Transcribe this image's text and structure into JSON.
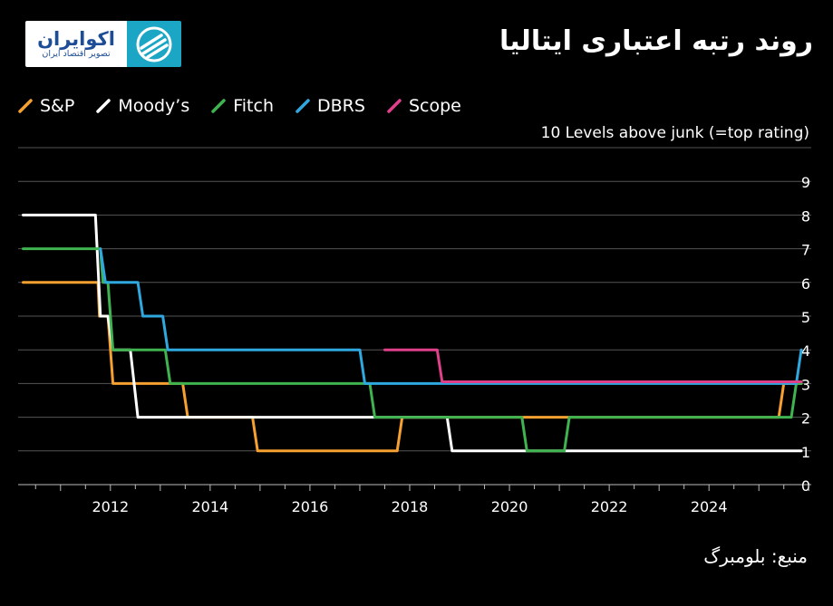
{
  "header": {
    "title": "روند رتبه اعتباری ایتالیا",
    "logo_name": "اکوایران",
    "logo_tagline": "تصویر اقتصاد ایران"
  },
  "source": "منبع: بلومبرگ",
  "colors": {
    "background": "#000000",
    "grid": "#555555",
    "logo_blue": "#1e4d97",
    "logo_teal": "#1aa6c4"
  },
  "chart_data": {
    "type": "line",
    "title": "روند رتبه اعتباری ایتالیا",
    "ylabel": "10 Levels above junk (=top rating)",
    "xlabel": "",
    "xlim": [
      2010.15,
      2026.05
    ],
    "ylim": [
      0,
      10
    ],
    "x_ticks": [
      2012,
      2014,
      2016,
      2018,
      2020,
      2022,
      2024
    ],
    "y_ticks": [
      0,
      1,
      2,
      3,
      4,
      5,
      6,
      7,
      8,
      9
    ],
    "grid": true,
    "legend_position": "top-left",
    "series": [
      {
        "name": "S&P",
        "color": "#f5a030",
        "points": [
          [
            2010.25,
            6
          ],
          [
            2011.75,
            6
          ],
          [
            2011.78,
            5
          ],
          [
            2011.95,
            5
          ],
          [
            2012.05,
            3
          ],
          [
            2013.45,
            3
          ],
          [
            2013.55,
            2
          ],
          [
            2014.85,
            2
          ],
          [
            2014.95,
            1
          ],
          [
            2017.75,
            1
          ],
          [
            2017.85,
            2
          ],
          [
            2025.4,
            2
          ],
          [
            2025.5,
            3
          ],
          [
            2025.85,
            3
          ]
        ]
      },
      {
        "name": "Moody’s",
        "color": "#ffffff",
        "points": [
          [
            2010.25,
            8
          ],
          [
            2011.7,
            8
          ],
          [
            2011.8,
            5
          ],
          [
            2011.95,
            5
          ],
          [
            2012.05,
            4
          ],
          [
            2012.4,
            4
          ],
          [
            2012.55,
            2
          ],
          [
            2018.75,
            2
          ],
          [
            2018.85,
            1
          ],
          [
            2025.85,
            1
          ]
        ]
      },
      {
        "name": "Fitch",
        "color": "#3fb34f",
        "points": [
          [
            2010.25,
            7
          ],
          [
            2011.8,
            7
          ],
          [
            2011.85,
            6
          ],
          [
            2011.95,
            6
          ],
          [
            2012.05,
            4
          ],
          [
            2013.1,
            4
          ],
          [
            2013.2,
            3
          ],
          [
            2017.2,
            3
          ],
          [
            2017.3,
            2
          ],
          [
            2020.25,
            2
          ],
          [
            2020.35,
            1
          ],
          [
            2021.1,
            1
          ],
          [
            2021.2,
            2
          ],
          [
            2025.65,
            2
          ],
          [
            2025.75,
            3
          ],
          [
            2025.85,
            3
          ]
        ]
      },
      {
        "name": "DBRS",
        "color": "#2fa8e0",
        "points": [
          [
            2011.8,
            7
          ],
          [
            2011.9,
            6
          ],
          [
            2012.55,
            6
          ],
          [
            2012.65,
            5
          ],
          [
            2013.05,
            5
          ],
          [
            2013.15,
            4
          ],
          [
            2017.0,
            4
          ],
          [
            2017.1,
            3
          ],
          [
            2025.75,
            3
          ],
          [
            2025.85,
            4
          ]
        ]
      },
      {
        "name": "Scope",
        "color": "#e0408a",
        "points": [
          [
            2017.5,
            4
          ],
          [
            2018.55,
            4
          ],
          [
            2018.65,
            3.05
          ],
          [
            2025.85,
            3.05
          ]
        ]
      }
    ]
  }
}
